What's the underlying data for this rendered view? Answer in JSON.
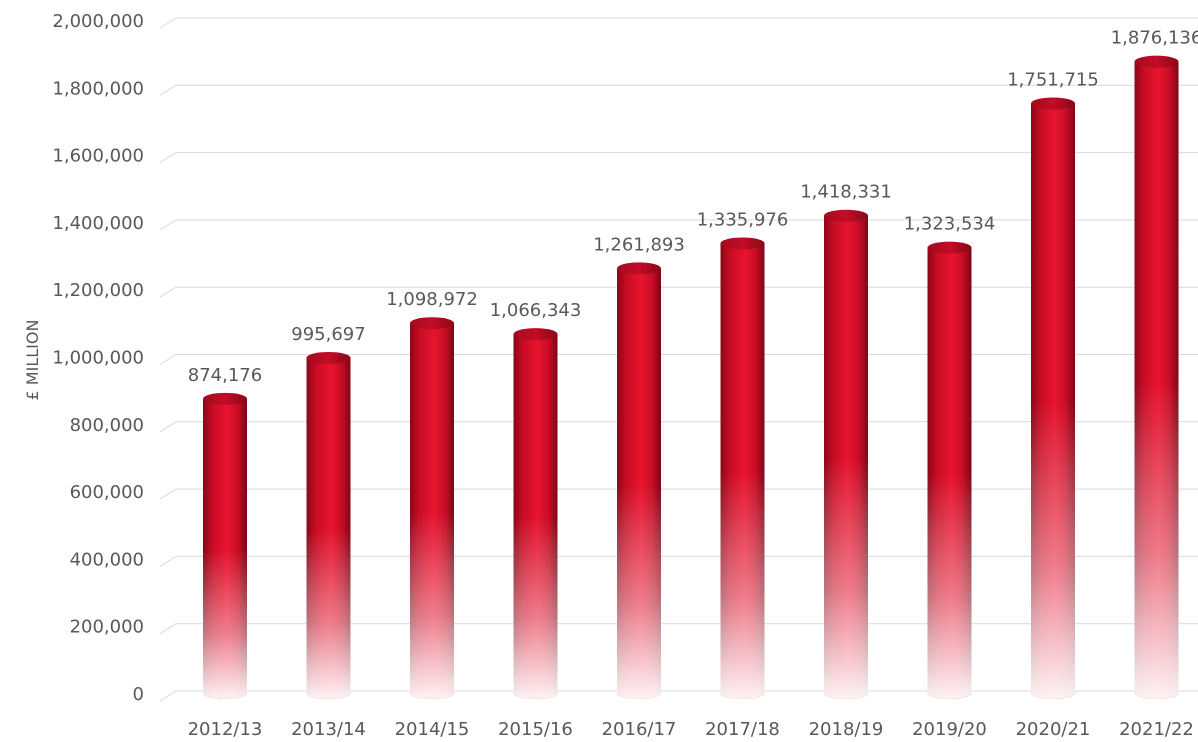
{
  "chart_data": {
    "type": "bar",
    "style": "3d-cylinder",
    "categories": [
      "2012/13",
      "2013/14",
      "2014/15",
      "2015/16",
      "2016/17",
      "2017/18",
      "2018/19",
      "2019/20",
      "2020/21",
      "2021/22"
    ],
    "values": [
      874176,
      995697,
      1098972,
      1066343,
      1261893,
      1335976,
      1418331,
      1323534,
      1751715,
      1876136
    ],
    "data_labels": [
      "874,176",
      "995,697",
      "1,098,972",
      "1,066,343",
      "1,261,893",
      "1,335,976",
      "1,418,331",
      "1,323,534",
      "1,751,715",
      "1,876,136"
    ],
    "ylabel": "£ MILLION",
    "ylim": [
      0,
      2000000
    ],
    "y_ticks": [
      0,
      200000,
      400000,
      600000,
      800000,
      1000000,
      1200000,
      1400000,
      1600000,
      1800000,
      2000000
    ],
    "y_tick_labels": [
      "0",
      "200,000",
      "400,000",
      "600,000",
      "800,000",
      "1,000,000",
      "1,200,000",
      "1,400,000",
      "1,600,000",
      "1,800,000",
      "2,000,000"
    ],
    "grid": true,
    "legend": "none",
    "colors": {
      "bar": "#e0102b",
      "bar_dark": "#9e0a1e",
      "grid": "#d9d9d9",
      "text": "#595959"
    }
  }
}
